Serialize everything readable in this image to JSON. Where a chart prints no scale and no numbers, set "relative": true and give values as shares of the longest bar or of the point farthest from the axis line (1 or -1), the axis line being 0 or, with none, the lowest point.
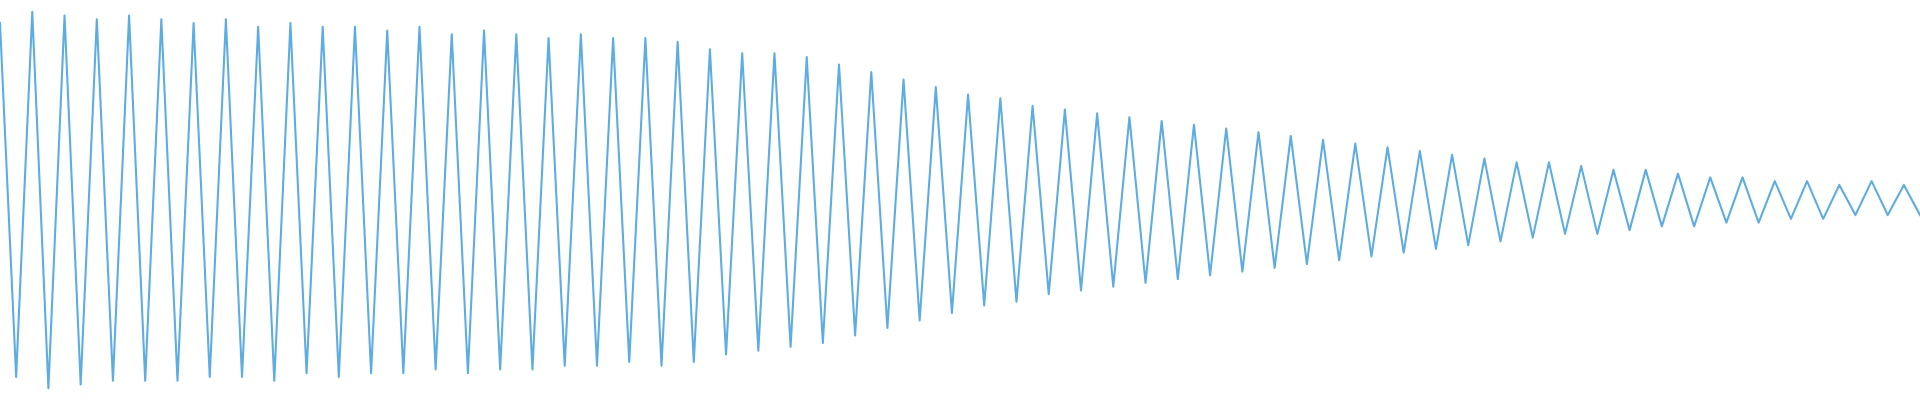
{
  "chart_data": {
    "type": "line",
    "relative": true,
    "legend": false,
    "marker": "none",
    "line_style": "solid",
    "categories": [
      null,
      null,
      null,
      null,
      null,
      null,
      null,
      null,
      null,
      null,
      null,
      null,
      null,
      null,
      null,
      null,
      null,
      null,
      null,
      null,
      null,
      null,
      null,
      null,
      null,
      null,
      null,
      null,
      null,
      null,
      null,
      null,
      null,
      null,
      null,
      null,
      null,
      null,
      null,
      null,
      null,
      null,
      null,
      null,
      null,
      null,
      null,
      null,
      null,
      null,
      null,
      null,
      null,
      null,
      null,
      null,
      null,
      null,
      null,
      null,
      null,
      null,
      null,
      null,
      null,
      null,
      null,
      null,
      null,
      null,
      null,
      null,
      null,
      null,
      null,
      null,
      null,
      null,
      null,
      null,
      null,
      null,
      null,
      null,
      null,
      null,
      null,
      null,
      null,
      null,
      null,
      null,
      null,
      null,
      null,
      null,
      null,
      null,
      null,
      null,
      null,
      null,
      null,
      null,
      null,
      null,
      null,
      null,
      null,
      null,
      null,
      null,
      null,
      null,
      null,
      null,
      null,
      null,
      null,
      null
    ],
    "series": [
      {
        "color": "#5dade2",
        "values": [
          0.97,
          0.03,
          1.0,
          0.0,
          0.99,
          0.01,
          0.98,
          0.02,
          0.99,
          0.02,
          0.98,
          0.02,
          0.97,
          0.03,
          0.98,
          0.03,
          0.96,
          0.02,
          0.97,
          0.04,
          0.96,
          0.03,
          0.96,
          0.04,
          0.95,
          0.04,
          0.96,
          0.05,
          0.94,
          0.04,
          0.95,
          0.05,
          0.94,
          0.05,
          0.93,
          0.06,
          0.94,
          0.06,
          0.93,
          0.07,
          0.93,
          0.06,
          0.92,
          0.07,
          0.9,
          0.09,
          0.89,
          0.1,
          0.89,
          0.11,
          0.88,
          0.12,
          0.86,
          0.14,
          0.84,
          0.16,
          0.82,
          0.18,
          0.8,
          0.2,
          0.78,
          0.22,
          0.77,
          0.23,
          0.75,
          0.25,
          0.74,
          0.26,
          0.73,
          0.27,
          0.72,
          0.28,
          0.71,
          0.29,
          0.7,
          0.3,
          0.69,
          0.31,
          0.68,
          0.32,
          0.67,
          0.33,
          0.66,
          0.34,
          0.65,
          0.35,
          0.64,
          0.36,
          0.63,
          0.37,
          0.62,
          0.38,
          0.61,
          0.39,
          0.6,
          0.4,
          0.6,
          0.41,
          0.59,
          0.41,
          0.58,
          0.42,
          0.58,
          0.43,
          0.57,
          0.43,
          0.56,
          0.44,
          0.56,
          0.44,
          0.55,
          0.45,
          0.55,
          0.45,
          0.54,
          0.46,
          0.55,
          0.46,
          0.54,
          0.46
        ]
      }
    ]
  }
}
